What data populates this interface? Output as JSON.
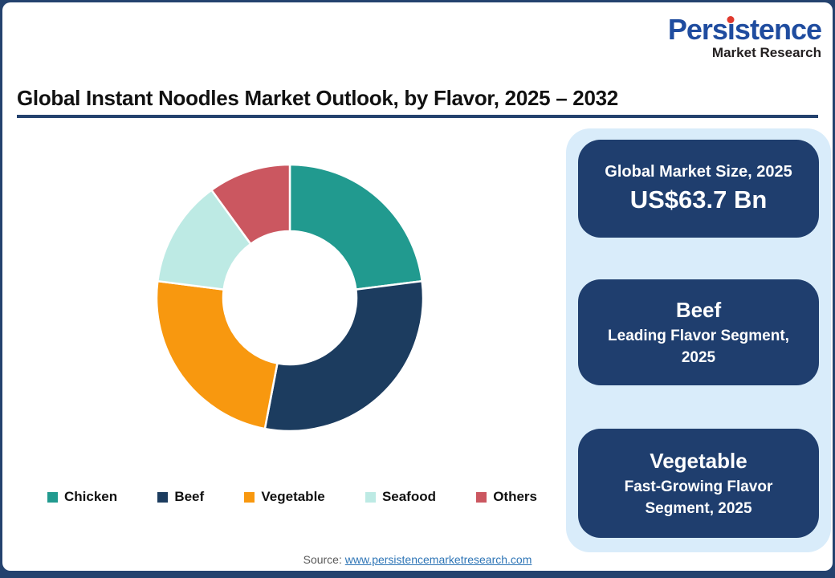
{
  "page": {
    "frame_color": "#24426E",
    "background": "#FFFFFF"
  },
  "brand": {
    "name_pre": "Pers",
    "name_i": "i",
    "name_post": "stence",
    "subtitle": "Market Research",
    "blue": "#1F4C9F",
    "dot_red": "#E0392E",
    "dark": "#231F20"
  },
  "title": {
    "text": "Global Instant Noodles Market Outlook, by Flavor, 2025 – 2032",
    "underline_color": "#24426E"
  },
  "chart_data": {
    "type": "pie",
    "subtype": "donut",
    "title": "Global Instant Noodles Market Outlook, by Flavor, 2025 – 2032",
    "categories": [
      "Chicken",
      "Beef",
      "Vegetable",
      "Seafood",
      "Others"
    ],
    "values": [
      23,
      30,
      24,
      13,
      10
    ],
    "value_unit": "% share (estimated from arc angles)",
    "colors": [
      "#219A8F",
      "#1C3C5F",
      "#F8980F",
      "#BDEAE4",
      "#CB5760"
    ],
    "start_angle_deg": 0,
    "clockwise": true,
    "inner_radius_ratio": 0.5,
    "separator_color": "#FFFFFF",
    "legend_position": "bottom"
  },
  "panel": {
    "bg": "#D9ECFA",
    "box_bg": "#1F3E6E",
    "boxes": [
      {
        "line1": "Global Market Size, 2025",
        "line2": "US$63.7 Bn"
      },
      {
        "line1": "Beef",
        "line2": "Leading Flavor Segment, 2025"
      },
      {
        "line1": "Vegetable",
        "line2": "Fast-Growing Flavor Segment, 2025"
      }
    ]
  },
  "footer": {
    "source_label": "Source:",
    "link_text": "www.persistencemarketresearch.com",
    "link_color": "#2E75B6"
  }
}
